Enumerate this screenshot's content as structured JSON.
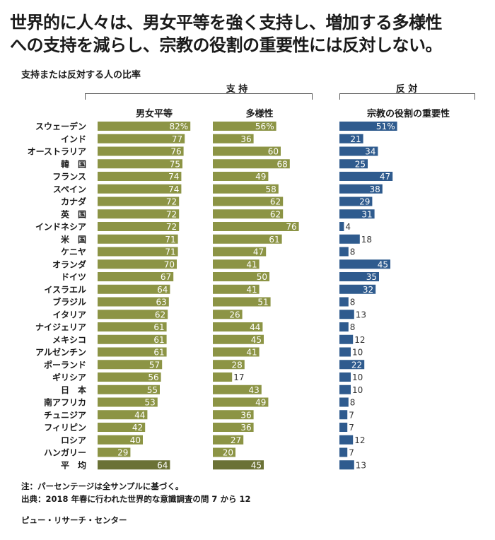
{
  "title_line1": "世界的に人々は、男女平等を強く支持し、増加する多様性",
  "title_line2": "への支持を減らし、宗教の役割の重要性には反対しない。",
  "subtitle": "支持または反対する人の比率",
  "group_support": "支 持",
  "group_oppose": "反 対",
  "notes": {
    "note": "注：パーセンテージは全サンプルに基づく。",
    "source": "出典：2018 年春に行われた世界的な意識調査の問 7 から 12",
    "credit": "ピュー・リサーチ・センター"
  },
  "chart_data": {
    "type": "bar",
    "categories": [
      "スウェーデン",
      "インド",
      "オーストラリア",
      "韓　国",
      "フランス",
      "スペイン",
      "カナダ",
      "英　国",
      "インドネシア",
      "米　国",
      "ケニヤ",
      "オランダ",
      "ドイツ",
      "イスラエル",
      "ブラジル",
      "イタリア",
      "ナイジェリア",
      "メキシコ",
      "アルゼンチン",
      "ポーランド",
      "ギリシア",
      "日　本",
      "南アフリカ",
      "チュニジア",
      "フィリピン",
      "ロシア",
      "ハンガリー",
      "平　均"
    ],
    "series": [
      {
        "name": "男女平等",
        "group": "支持",
        "color": "#8c9445",
        "avg_color": "#6b7236",
        "values": [
          82,
          77,
          76,
          75,
          74,
          74,
          72,
          72,
          72,
          71,
          71,
          70,
          67,
          64,
          63,
          62,
          61,
          61,
          61,
          57,
          56,
          55,
          53,
          44,
          42,
          40,
          29,
          64
        ]
      },
      {
        "name": "多様性",
        "group": "支持",
        "color": "#8c9445",
        "avg_color": "#6b7236",
        "values": [
          56,
          36,
          60,
          68,
          49,
          58,
          62,
          62,
          76,
          61,
          47,
          41,
          50,
          41,
          51,
          26,
          44,
          45,
          41,
          28,
          17,
          43,
          49,
          36,
          36,
          27,
          20,
          45
        ]
      },
      {
        "name": "宗教の役割の重要性",
        "group": "反対",
        "color": "#2f5b8e",
        "avg_color": "#2f5b8e",
        "values": [
          51,
          21,
          34,
          25,
          47,
          38,
          29,
          31,
          4,
          18,
          8,
          45,
          35,
          32,
          8,
          13,
          8,
          12,
          10,
          22,
          10,
          10,
          8,
          7,
          7,
          12,
          7,
          13
        ]
      }
    ],
    "percent_labels": {
      "first_row": true
    },
    "xlim": [
      0,
      100
    ]
  }
}
